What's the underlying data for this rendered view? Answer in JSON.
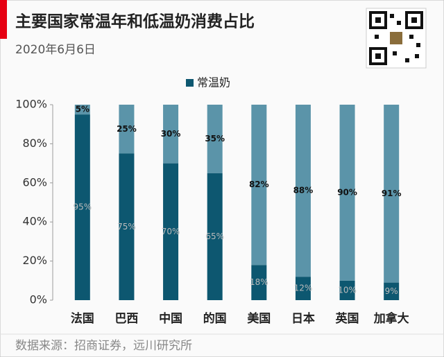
{
  "chart_data": {
    "type": "stacked_bar",
    "title": "主要国家常温年和低温奶消费占比",
    "subtitle": "2020年6月6日",
    "source": "数据来源：招商证券，远川研究所",
    "categories": [
      "法国",
      "巴西",
      "中国",
      "的国",
      "美国",
      "日本",
      "英国",
      "加拿大"
    ],
    "series": [
      {
        "name": "常温奶",
        "color": "#0d5770",
        "values": [
          95,
          75,
          70,
          65,
          18,
          12,
          10,
          9
        ],
        "value_labels": [
          "95%",
          "75%",
          "70%",
          "65%",
          "18%",
          "12%",
          "10%",
          "9%"
        ]
      },
      {
        "color": "#5b94a9",
        "values": [
          5,
          25,
          30,
          35,
          82,
          88,
          90,
          91
        ],
        "value_labels": [
          "5%",
          "25%",
          "30%",
          "35%",
          "82%",
          "88%",
          "90%",
          "91%"
        ]
      }
    ],
    "ylim": [
      0,
      100
    ],
    "yticks": [
      {
        "value": 0,
        "label": "0%"
      },
      {
        "value": 20,
        "label": "20%"
      },
      {
        "value": 40,
        "label": "40%"
      },
      {
        "value": 60,
        "label": "60%"
      },
      {
        "value": 80,
        "label": "80%"
      },
      {
        "value": 100,
        "label": "100%"
      }
    ],
    "legend": "top"
  }
}
